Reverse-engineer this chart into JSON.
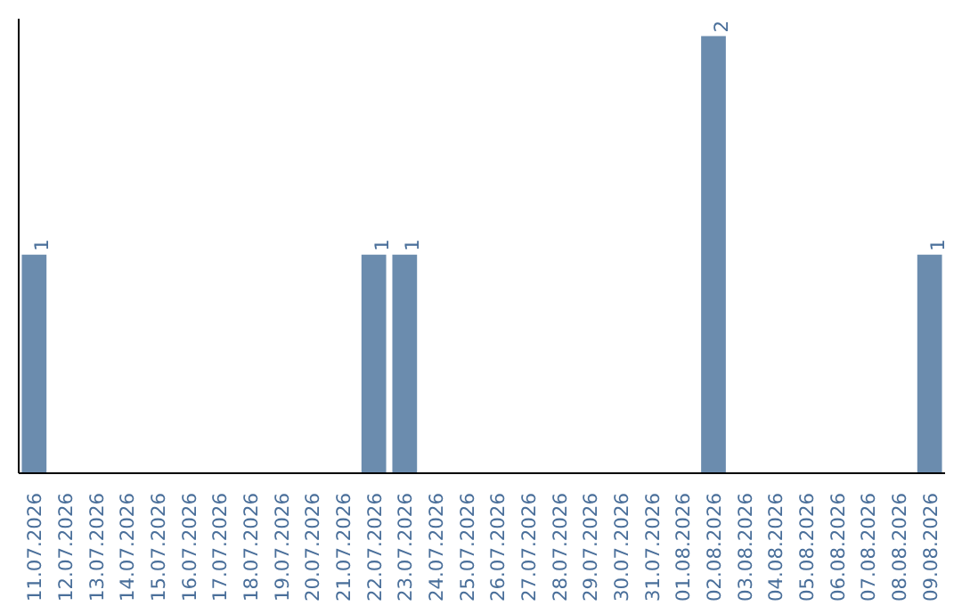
{
  "chart_data": {
    "type": "bar",
    "categories": [
      "11.07.2026",
      "12.07.2026",
      "13.07.2026",
      "14.07.2026",
      "15.07.2026",
      "16.07.2026",
      "17.07.2026",
      "18.07.2026",
      "19.07.2026",
      "20.07.2026",
      "21.07.2026",
      "22.07.2026",
      "23.07.2026",
      "24.07.2026",
      "25.07.2026",
      "26.07.2026",
      "27.07.2026",
      "28.07.2026",
      "29.07.2026",
      "30.07.2026",
      "31.07.2026",
      "01.08.2026",
      "02.08.2026",
      "03.08.2026",
      "04.08.2026",
      "05.08.2026",
      "06.08.2026",
      "07.08.2026",
      "08.08.2026",
      "09.08.2026"
    ],
    "values": [
      1,
      0,
      0,
      0,
      0,
      0,
      0,
      0,
      0,
      0,
      0,
      1,
      1,
      0,
      0,
      0,
      0,
      0,
      0,
      0,
      0,
      0,
      2,
      0,
      0,
      0,
      0,
      0,
      0,
      1
    ],
    "value_labels": [
      "1",
      null,
      null,
      null,
      null,
      null,
      null,
      null,
      null,
      null,
      null,
      "1",
      "1",
      null,
      null,
      null,
      null,
      null,
      null,
      null,
      null,
      null,
      "2",
      null,
      null,
      null,
      null,
      null,
      null,
      "1"
    ],
    "color": "#6b8cae",
    "tick_labels": "x"
  }
}
